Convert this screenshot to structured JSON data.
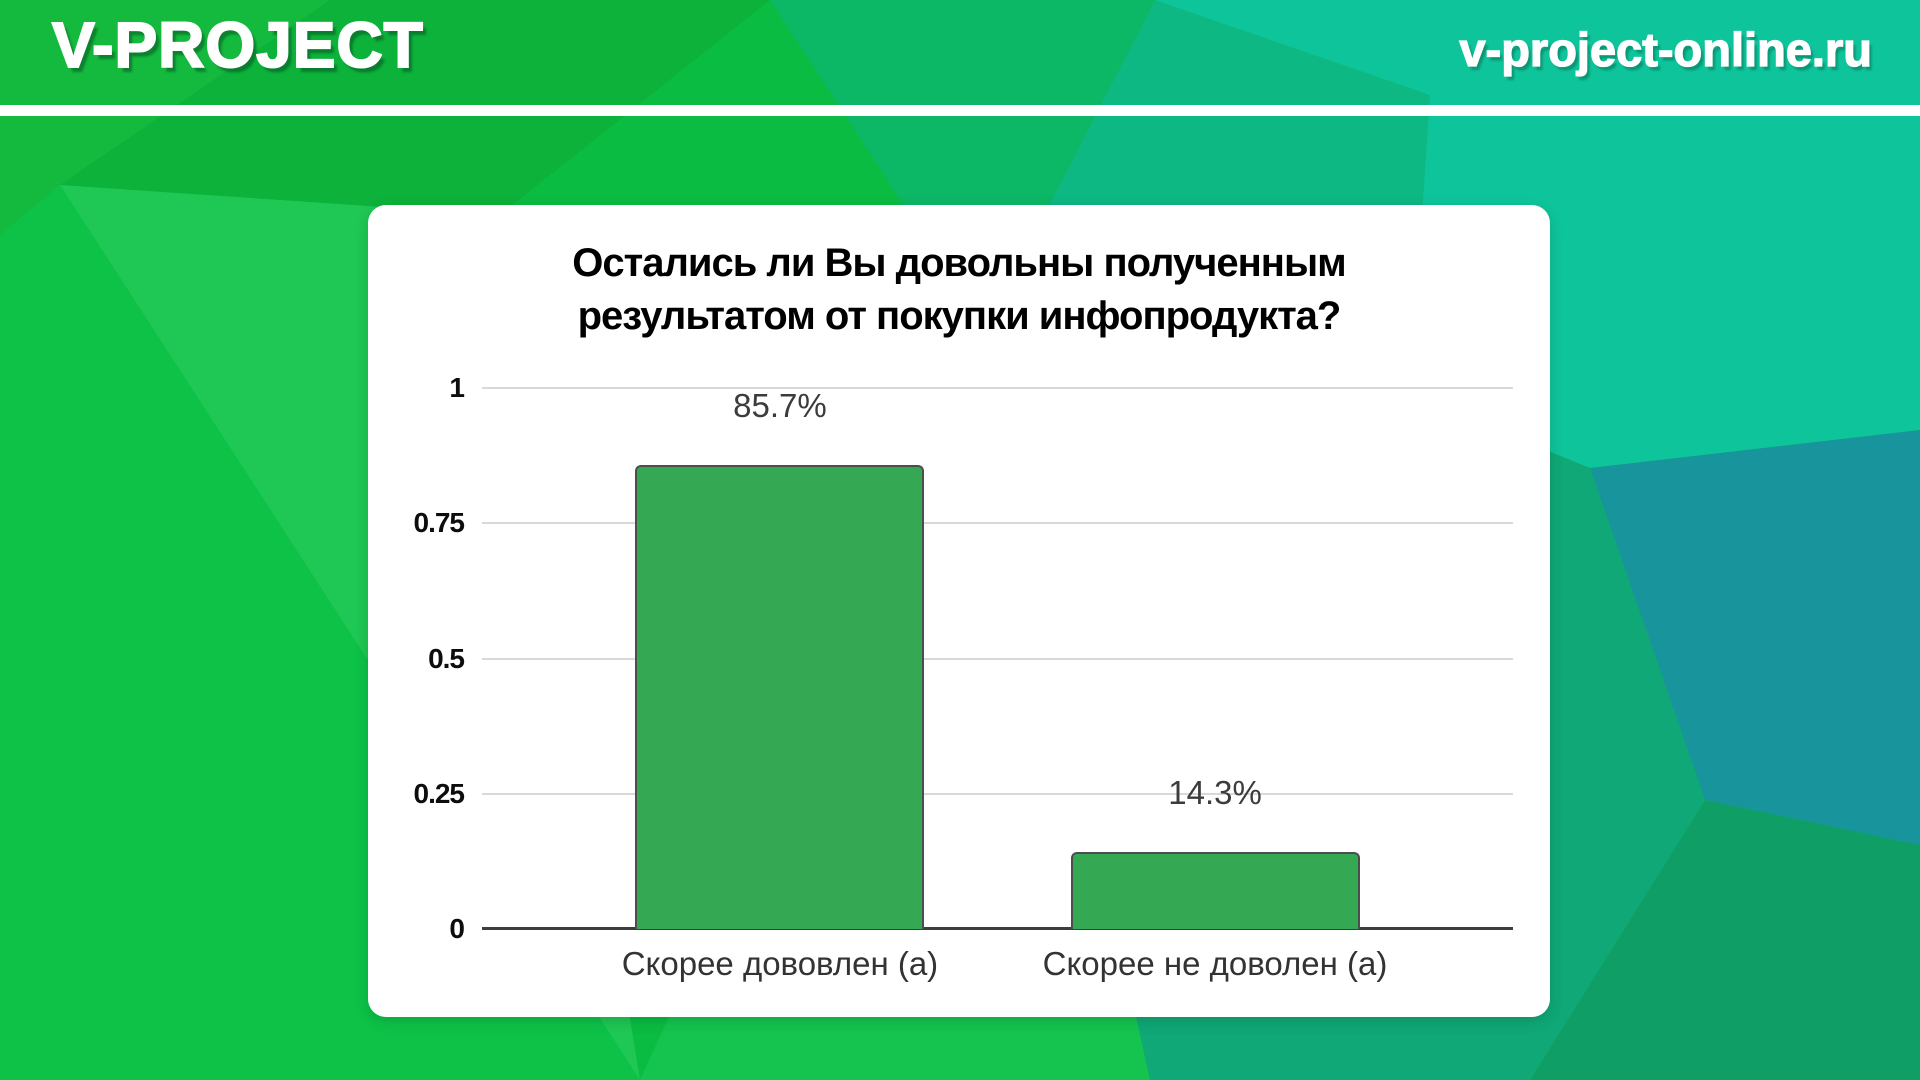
{
  "header": {
    "logo": "V-PROJECT",
    "url": "v-project-online.ru"
  },
  "background": {
    "style": "low-poly green to teal mosaic",
    "left_green": "#0dc247",
    "right_teal": "#0ec59b",
    "dark_teal_accent": "#17949c",
    "divider_color": "#ffffff"
  },
  "chart_data": {
    "type": "bar",
    "title": "Остались ли Вы довольны полученным результатом от покупки инфопродукта?",
    "title_lines": [
      "Остались ли Вы довольны полученным",
      "результатом от покупки инфопродукта?"
    ],
    "categories": [
      "Скорее дововлен (а)",
      "Скорее не доволен (а)"
    ],
    "values": [
      0.857,
      0.143
    ],
    "value_labels": [
      "85.7%",
      "14.3%"
    ],
    "xlabel": "",
    "ylabel": "",
    "ylim": [
      0,
      1
    ],
    "y_ticks": [
      0,
      0.25,
      0.5,
      0.75,
      1
    ],
    "y_tick_labels": [
      "0",
      "0.25",
      "0.5",
      "0.75",
      "1"
    ],
    "grid": true,
    "legend": "none",
    "bar_color": "#35a854",
    "bar_border_color": "#4d4d4d",
    "gridline_color": "#d9d9d9",
    "axis_color": "#3d3d3d"
  }
}
